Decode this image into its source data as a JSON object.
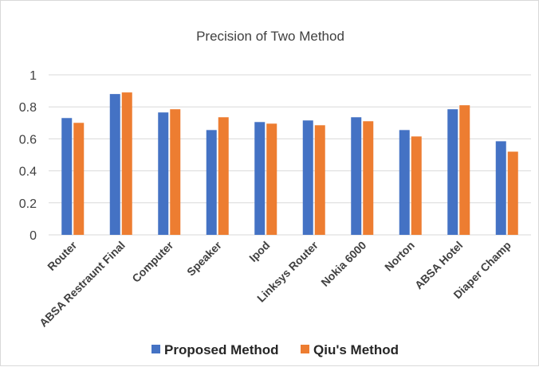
{
  "chart_data": {
    "type": "bar",
    "title": "Precision of Two Method",
    "xlabel": "",
    "ylabel": "",
    "categories": [
      "Router",
      "ABSA Restraunt Final",
      "Computer",
      "Speaker",
      "Ipod",
      "Linksys Router",
      "Nokia 6000",
      "Norton",
      "ABSA Hotel",
      "Diaper Champ"
    ],
    "series": [
      {
        "name": "Proposed Method",
        "color": "#4472C4",
        "values": [
          0.73,
          0.88,
          0.765,
          0.655,
          0.705,
          0.715,
          0.735,
          0.655,
          0.785,
          0.585
        ]
      },
      {
        "name": "Qiu's Method",
        "color": "#ED7D31",
        "values": [
          0.7,
          0.89,
          0.785,
          0.735,
          0.695,
          0.685,
          0.71,
          0.615,
          0.81,
          0.52
        ]
      }
    ],
    "ylim": [
      0,
      1
    ],
    "yticks": [
      "0",
      "0.2",
      "0.4",
      "0.6",
      "0.8",
      "1"
    ],
    "grid": true,
    "legend_position": "bottom"
  }
}
